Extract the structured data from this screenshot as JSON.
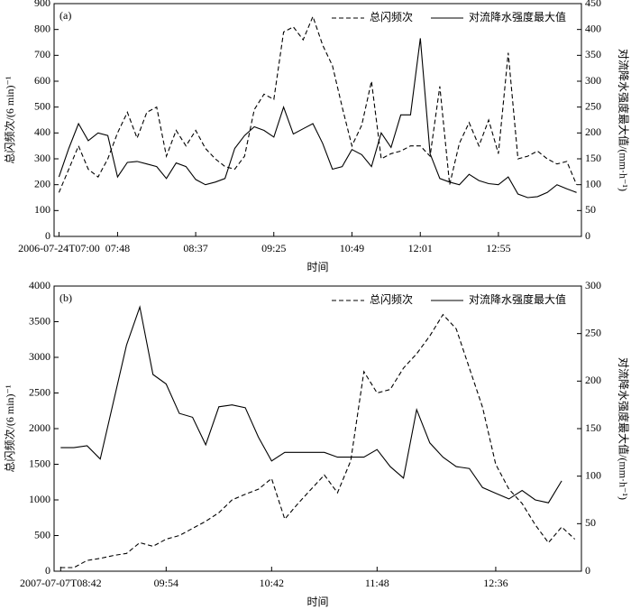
{
  "chart_data": [
    {
      "type": "line",
      "panel_label": "(a)",
      "x_label": "时间",
      "y_label": "总闪频次/(6 min)⁻¹",
      "y2_label": "对流降水强度最大值/(mm·h⁻¹)",
      "legend": "upper right",
      "categories": [
        "2006-07-24T07:00",
        null,
        null,
        null,
        null,
        null,
        "07:48",
        null,
        null,
        null,
        null,
        null,
        null,
        null,
        "08:37",
        null,
        null,
        null,
        null,
        null,
        null,
        null,
        "09:25",
        null,
        null,
        null,
        null,
        null,
        null,
        null,
        "10:49",
        null,
        null,
        null,
        null,
        null,
        null,
        "12:01",
        null,
        null,
        null,
        null,
        null,
        null,
        null,
        "12:55",
        null,
        null,
        null,
        null,
        null,
        null,
        null,
        null
      ],
      "ylim": [
        0,
        900
      ],
      "yticks": [
        0,
        100,
        200,
        300,
        400,
        500,
        600,
        700,
        800,
        900
      ],
      "y2lim": [
        0,
        450
      ],
      "y2ticks": [
        0,
        50,
        100,
        150,
        200,
        250,
        300,
        350,
        400,
        450
      ],
      "series": [
        {
          "name": "总闪频次",
          "color": "#000000",
          "linestyle": "dashed",
          "axis": "y",
          "values": [
            170,
            260,
            350,
            260,
            230,
            300,
            400,
            480,
            380,
            480,
            500,
            310,
            410,
            350,
            410,
            340,
            300,
            270,
            260,
            310,
            490,
            550,
            530,
            790,
            810,
            760,
            850,
            740,
            660,
            500,
            350,
            430,
            600,
            300,
            320,
            330,
            350,
            350,
            310,
            580,
            200,
            360,
            440,
            350,
            450,
            320,
            710,
            300,
            310,
            330,
            300,
            280,
            290,
            200
          ]
        },
        {
          "name": "对流降水强度最大值",
          "color": "#000000",
          "linestyle": "solid",
          "axis": "y2",
          "values": [
            115,
            170,
            218,
            185,
            200,
            195,
            115,
            143,
            145,
            140,
            135,
            112,
            142,
            135,
            110,
            100,
            105,
            112,
            170,
            195,
            212,
            205,
            192,
            250,
            198,
            208,
            218,
            180,
            130,
            135,
            168,
            158,
            135,
            200,
            172,
            235,
            235,
            383,
            160,
            112,
            105,
            100,
            120,
            108,
            102,
            100,
            115,
            82,
            75,
            77,
            85,
            100,
            92,
            85
          ]
        }
      ]
    },
    {
      "type": "line",
      "panel_label": "(b)",
      "x_label": "时间",
      "y_label": "总闪频次/(6 min)⁻¹",
      "y2_label": "对流降水强度最大值/(mm·h⁻¹)",
      "legend": "upper right",
      "categories": [
        "2007-07-07T08:42",
        null,
        null,
        null,
        null,
        null,
        null,
        null,
        "09:54",
        null,
        null,
        null,
        null,
        null,
        null,
        null,
        "10:42",
        null,
        null,
        null,
        null,
        null,
        null,
        null,
        "11:48",
        null,
        null,
        null,
        null,
        null,
        null,
        null,
        null,
        "12:36",
        null,
        null,
        null,
        null,
        null,
        null
      ],
      "ylim": [
        0,
        4000
      ],
      "yticks": [
        0,
        500,
        1000,
        1500,
        2000,
        2500,
        3000,
        3500,
        4000
      ],
      "y2lim": [
        0,
        300
      ],
      "y2ticks": [
        0,
        50,
        100,
        150,
        200,
        250,
        300
      ],
      "series": [
        {
          "name": "总闪频次",
          "color": "#000000",
          "linestyle": "dashed",
          "axis": "y",
          "values": [
            50,
            50,
            150,
            180,
            220,
            250,
            400,
            350,
            450,
            500,
            600,
            700,
            820,
            1000,
            1080,
            1150,
            1300,
            730,
            950,
            1150,
            1350,
            1100,
            1550,
            2800,
            2500,
            2550,
            2850,
            3050,
            3300,
            3600,
            3400,
            2850,
            2300,
            1500,
            1150,
            950,
            650,
            400,
            620,
            450
          ]
        },
        {
          "name": "对流降水强度最大值",
          "color": "#000000",
          "linestyle": "solid",
          "axis": "y2",
          "values": [
            130,
            130,
            132,
            118,
            178,
            238,
            278,
            207,
            197,
            166,
            162,
            133,
            173,
            175,
            172,
            141,
            116,
            125,
            125,
            125,
            125,
            120,
            120,
            120,
            128,
            110,
            98,
            170,
            135,
            120,
            110,
            108,
            88,
            82,
            76,
            85,
            75,
            72,
            95,
            null
          ]
        }
      ]
    }
  ]
}
